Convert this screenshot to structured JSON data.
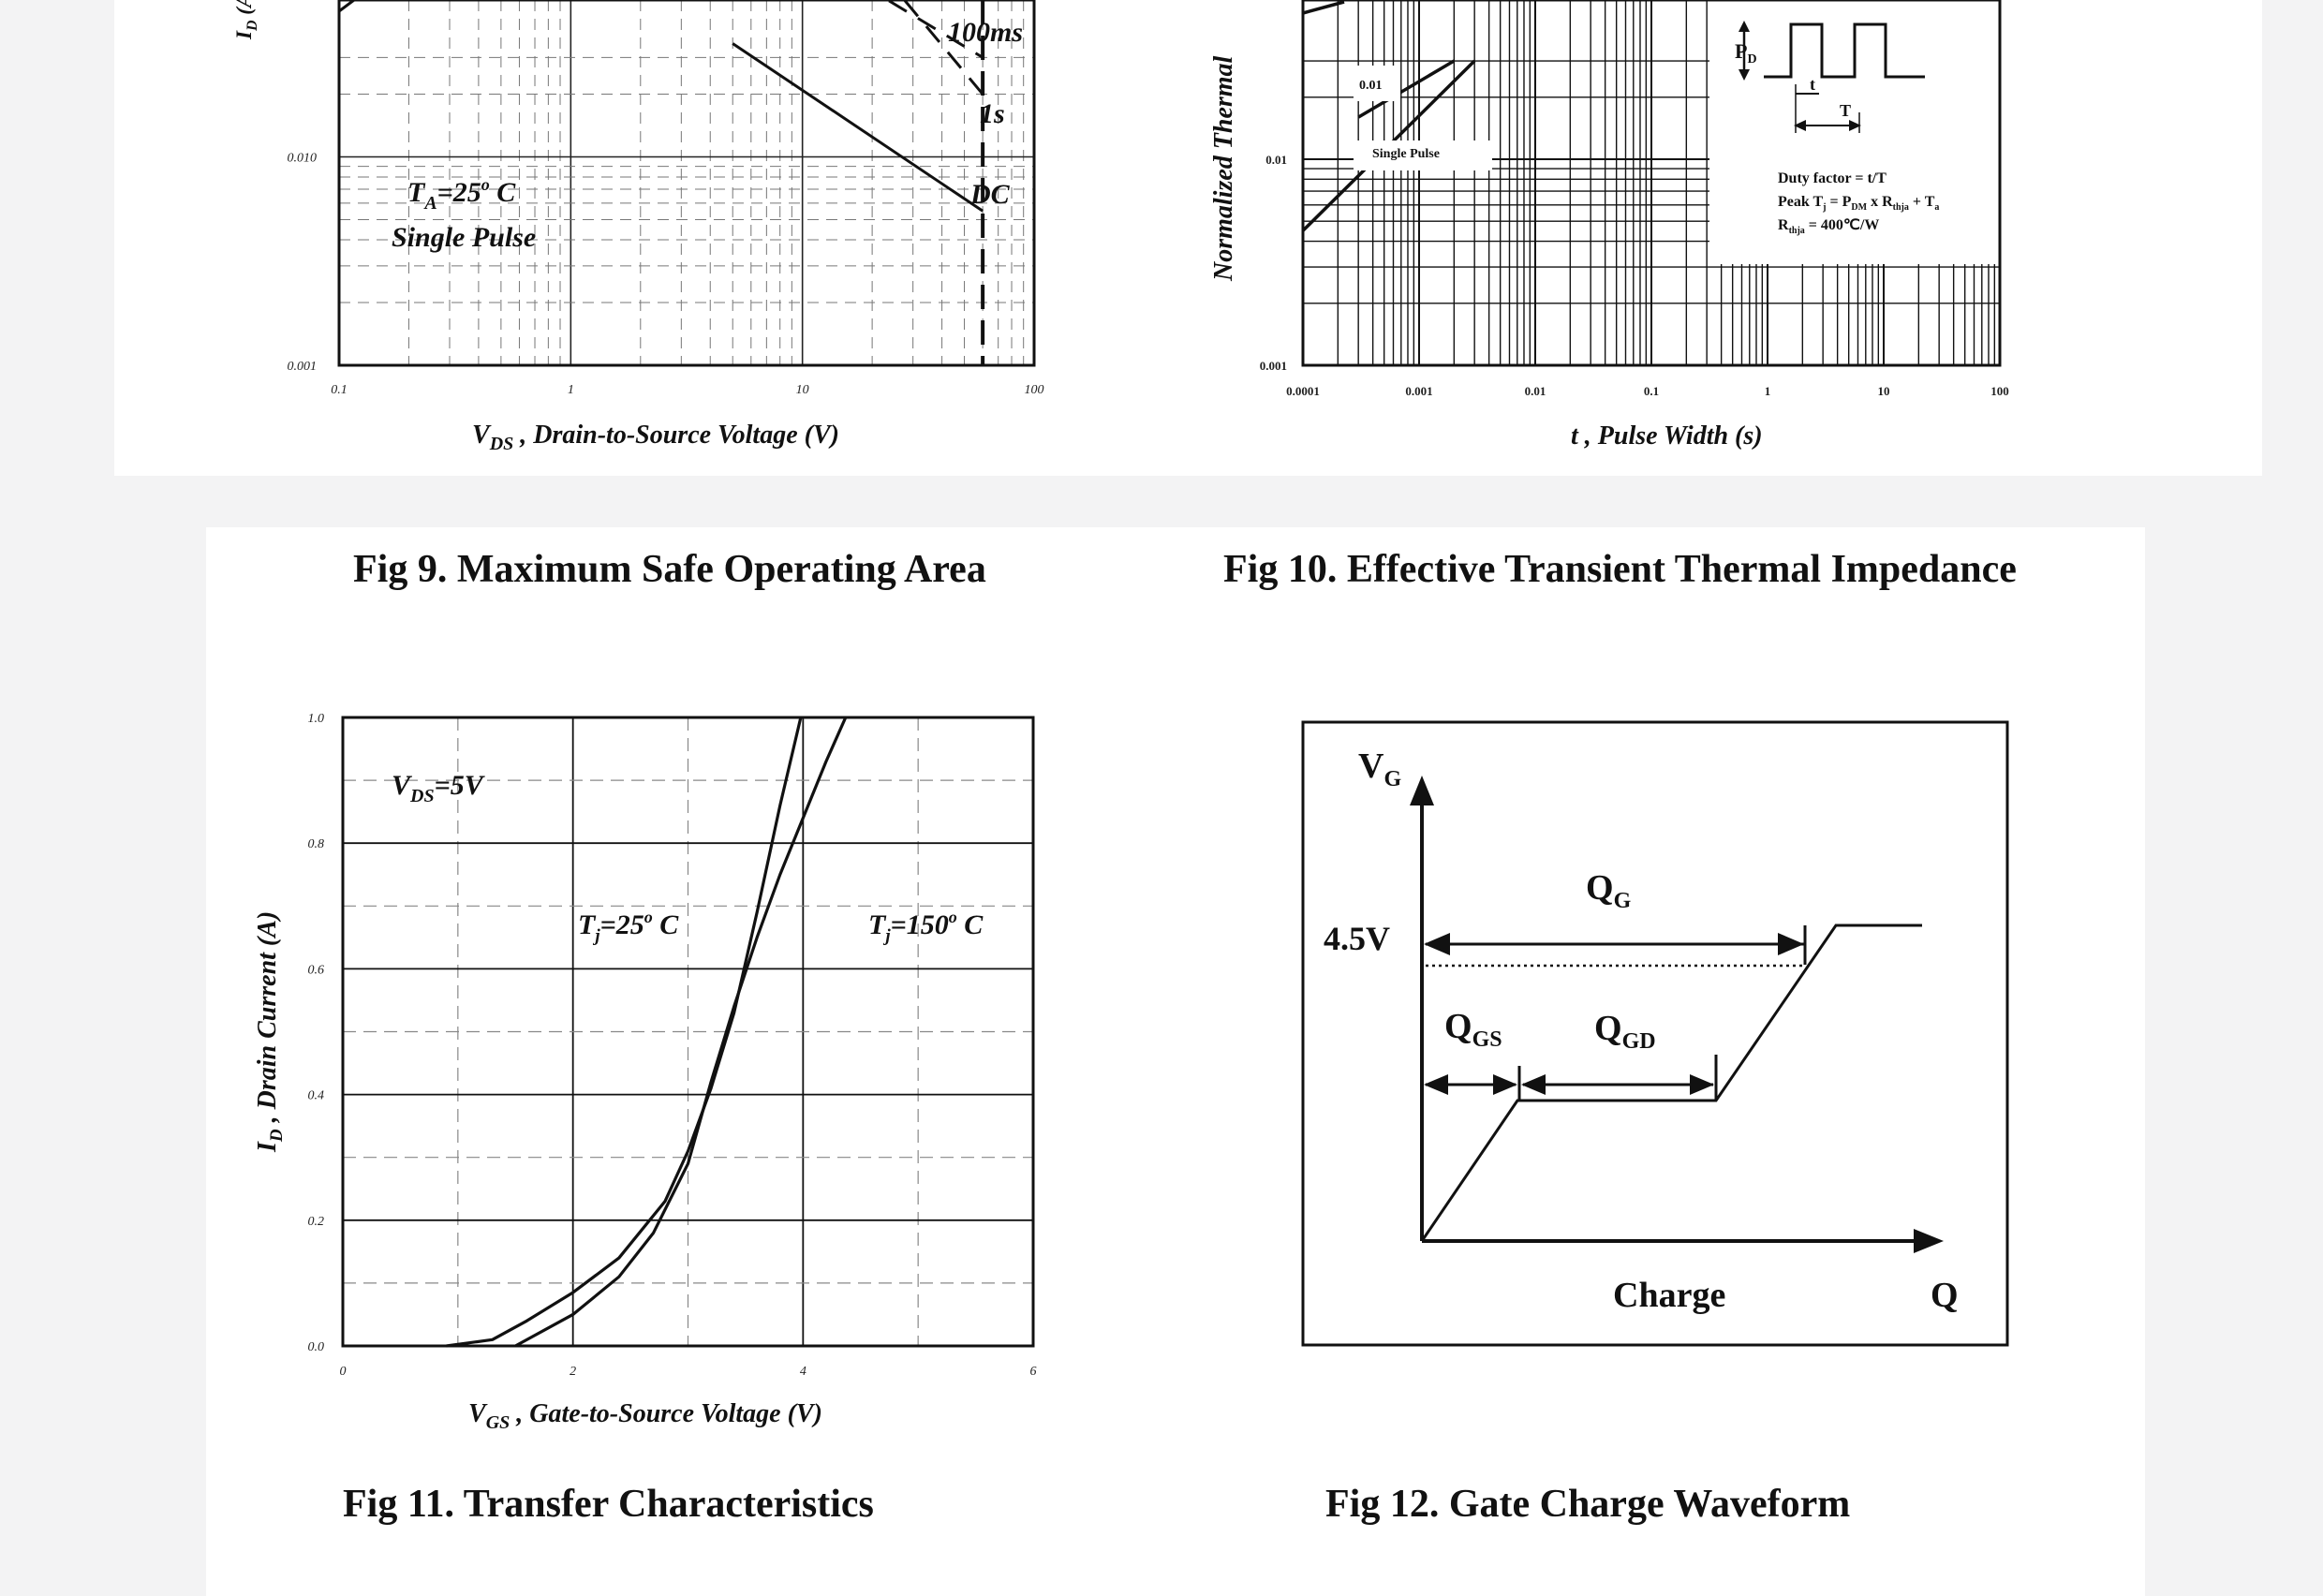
{
  "figures": [
    {
      "id": "fig9",
      "caption": "Fig 9. Maximum Safe Operating Area"
    },
    {
      "id": "fig10",
      "caption": "Fig 10. Effective Transient Thermal Impedance"
    },
    {
      "id": "fig11",
      "caption": "Fig 11. Transfer Characteristics"
    },
    {
      "id": "fig12",
      "caption": "Fig 12. Gate Charge Waveform"
    }
  ],
  "chart_data": [
    {
      "id": "fig9",
      "type": "line",
      "title": "Fig 9. Maximum Safe Operating Area",
      "xscale": "log",
      "yscale": "log",
      "xlim": [
        0.1,
        100
      ],
      "ylim": [
        0.001,
        0.03
      ],
      "x_ticks": [
        "0.1",
        "1",
        "10",
        "100"
      ],
      "y_ticks": [
        "0.001",
        "0.010"
      ],
      "xlabel": {
        "main": "V",
        "sub": "DS",
        "rest": " , Drain-to-Source Voltage (V)"
      },
      "ylabel": {
        "main": "I",
        "sub": "D",
        "rest": " (A)"
      },
      "annotations": {
        "ta": "T",
        "ta_sub": "A",
        "ta_rest": "=25",
        "ta_sup": "o",
        "ta_unit": " C",
        "pulse": "Single Pulse"
      },
      "series": [
        {
          "name": "100ms",
          "style": "dashed",
          "x": [
            10,
            60
          ],
          "y": [
            0.1,
            0.03
          ]
        },
        {
          "name": "1s",
          "style": "dashed",
          "x": [
            18,
            60
          ],
          "y": [
            0.1,
            0.02
          ]
        },
        {
          "name": "DC",
          "style": "solid",
          "x": [
            5,
            60
          ],
          "y": [
            0.035,
            0.0055
          ]
        }
      ],
      "limit_line": {
        "x": 60,
        "y": [
          0.001,
          0.03
        ]
      },
      "labels": {
        "l100": "100ms",
        "l1s": "1s",
        "ldc": "DC"
      }
    },
    {
      "id": "fig10",
      "type": "line",
      "title": "Fig 10. Effective Transient Thermal Impedance",
      "xscale": "log",
      "yscale": "log",
      "xlim": [
        0.0001,
        100
      ],
      "ylim": [
        0.001,
        0.03
      ],
      "x_ticks": [
        "0.0001",
        "0.001",
        "0.01",
        "0.1",
        "1",
        "10",
        "100"
      ],
      "y_ticks": [
        "0.001",
        "0.01"
      ],
      "xlabel": {
        "main": "t",
        "rest": " , Pulse Width (s)"
      },
      "ylabel": {
        "main": "Normalized Thermal"
      },
      "series": [
        {
          "name": "0.01",
          "x": [
            0.0003,
            0.002
          ],
          "y": [
            0.016,
            0.03
          ]
        },
        {
          "name": "Single Pulse",
          "x": [
            0.0001,
            0.003
          ],
          "y": [
            0.0045,
            0.03
          ]
        }
      ],
      "curve_labels": {
        "c001": "0.01",
        "csp": "Single Pulse"
      },
      "inset": {
        "pd": "P",
        "pd_sub": "D",
        "t": "t",
        "T": "T",
        "line1": "Duty factor = t/T",
        "line2": "Peak T",
        "line2_sub1": "j",
        "line2_b": " = P",
        "line2_sub2": "DM",
        "line2_c": " x R",
        "line2_sub3": "thja",
        "line2_d": " + T",
        "line2_sub4": "a",
        "line3": "R",
        "line3_sub": "thja",
        "line3_b": " = 400℃/W"
      }
    },
    {
      "id": "fig11",
      "type": "line",
      "title": "Fig 11. Transfer Characteristics",
      "xlim": [
        0,
        6
      ],
      "ylim": [
        0,
        1.0
      ],
      "x_ticks": [
        "0",
        "2",
        "4",
        "6"
      ],
      "y_ticks": [
        "0.0",
        "0.2",
        "0.4",
        "0.6",
        "0.8",
        "1.0"
      ],
      "xlabel": {
        "main": "V",
        "sub": "GS",
        "rest": " , Gate-to-Source Voltage (V)"
      },
      "ylabel": {
        "main": "I",
        "sub": "D",
        "rest": " , Drain Current (A)"
      },
      "annotations": {
        "vds": "V",
        "vds_sub": "DS",
        "vds_rest": "=5V"
      },
      "series": [
        {
          "name": "Tj=25° C",
          "x": [
            0.9,
            1.3,
            1.6,
            2.0,
            2.4,
            2.8,
            3.0,
            3.2,
            3.4,
            3.6,
            3.8,
            3.98
          ],
          "y": [
            0.0,
            0.01,
            0.04,
            0.085,
            0.14,
            0.23,
            0.31,
            0.41,
            0.53,
            0.69,
            0.86,
            1.0
          ]
        },
        {
          "name": "Tj=150° C",
          "x": [
            1.5,
            2.0,
            2.4,
            2.7,
            3.0,
            3.2,
            3.4,
            3.6,
            3.8,
            4.0,
            4.2,
            4.37
          ],
          "y": [
            0.0,
            0.05,
            0.11,
            0.18,
            0.29,
            0.42,
            0.54,
            0.65,
            0.75,
            0.84,
            0.93,
            1.0
          ]
        }
      ],
      "curve_labels": {
        "t25": "T",
        "t25_sub": "j",
        "t25_rest": "=25",
        "t25_sup": "o",
        "t25_unit": " C",
        "t150": "T",
        "t150_sub": "j",
        "t150_rest": "=150",
        "t150_sup": "o",
        "t150_unit": " C"
      }
    }
  ],
  "fig12": {
    "vg": "V",
    "vg_sub": "G",
    "v45": "4.5V",
    "qg": "Q",
    "qg_sub": "G",
    "qgs": "Q",
    "qgs_sub": "GS",
    "qgd": "Q",
    "qgd_sub": "GD",
    "charge": "Charge",
    "q": "Q"
  }
}
